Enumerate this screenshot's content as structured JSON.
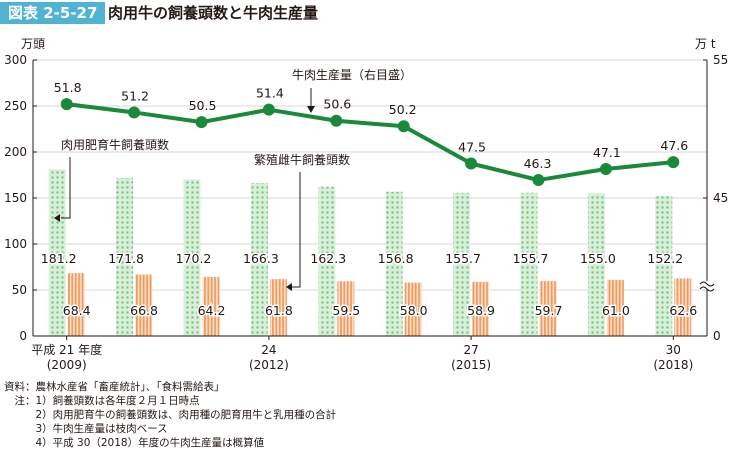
{
  "figure": {
    "badge": "図表 2-5-27",
    "title": "肉用牛の飼養頭数と牛肉生産量"
  },
  "chart_data": {
    "type": "bar+line",
    "left_axis": {
      "unit_label": "万頭",
      "ylim": [
        0,
        300
      ],
      "ticks": [
        0,
        50,
        100,
        150,
        200,
        250,
        300
      ]
    },
    "right_axis": {
      "unit_label": "万 t",
      "ticks_display": [
        "0",
        "45",
        "55"
      ],
      "broken": true,
      "line_range": [
        40,
        55
      ]
    },
    "x_labels": [
      {
        "index": 0,
        "line1": "平成 21 年度",
        "line2": "(2009)"
      },
      {
        "index": 3,
        "line1": "24",
        "line2": "(2012)"
      },
      {
        "index": 6,
        "line1": "27",
        "line2": "(2015)"
      },
      {
        "index": 9,
        "line1": "30",
        "line2": "(2018)"
      }
    ],
    "series": [
      {
        "name": "肉用肥育牛飼養頭数",
        "type": "bar",
        "color": "#8fce92",
        "values": [
          181.2,
          171.8,
          170.2,
          166.3,
          162.3,
          156.8,
          155.7,
          155.7,
          155.0,
          152.2
        ]
      },
      {
        "name": "繁殖雌牛飼養頭数",
        "type": "bar",
        "color": "#f4a56b",
        "values": [
          68.4,
          66.8,
          64.2,
          61.8,
          59.5,
          58.0,
          58.9,
          59.7,
          61.0,
          62.6
        ]
      },
      {
        "name": "牛肉生産量（右目盛）",
        "type": "line",
        "color": "#1a8a3a",
        "values": [
          51.8,
          51.2,
          50.5,
          51.4,
          50.6,
          50.2,
          47.5,
          46.3,
          47.1,
          47.6
        ]
      }
    ],
    "grid": true
  },
  "notes": [
    "資料：農林水産省「畜産統計」、「食料需給表」",
    "　注：1）飼養頭数は各年度２月１日時点",
    "　　　2）肉用肥育牛の飼養頭数は、肉用種の肥育用牛と乳用種の合計",
    "　　　3）牛肉生産量は枝肉ベース",
    "　　　4）平成 30（2018）年度の牛肉生産量は概算値"
  ]
}
